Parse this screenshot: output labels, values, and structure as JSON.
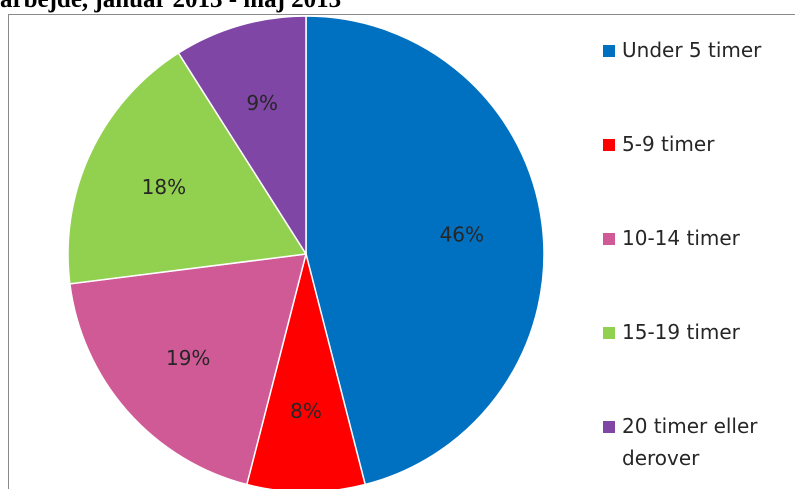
{
  "header": {
    "cut_title": "arbejde, januar 2013 - maj 2013"
  },
  "chart_data": {
    "type": "pie",
    "start_angle_deg": 0,
    "direction": "clockwise",
    "legend_position": "right",
    "categories": [
      "Under 5 timer",
      "5-9 timer",
      "10-14 timer",
      "15-19 timer",
      "20 timer eller derover"
    ],
    "values": [
      46,
      8,
      19,
      18,
      9
    ],
    "labels": [
      "46%",
      "8%",
      "19%",
      "18%",
      "9%"
    ],
    "colors": [
      "#0070C0",
      "#FF0000",
      "#D05A96",
      "#92D050",
      "#7F46A6"
    ],
    "legend_lines": [
      [
        "Under 5 timer"
      ],
      [
        "5-9 timer"
      ],
      [
        "10-14 timer"
      ],
      [
        "15-19 timer"
      ],
      [
        "20 timer eller",
        "derover"
      ]
    ]
  }
}
